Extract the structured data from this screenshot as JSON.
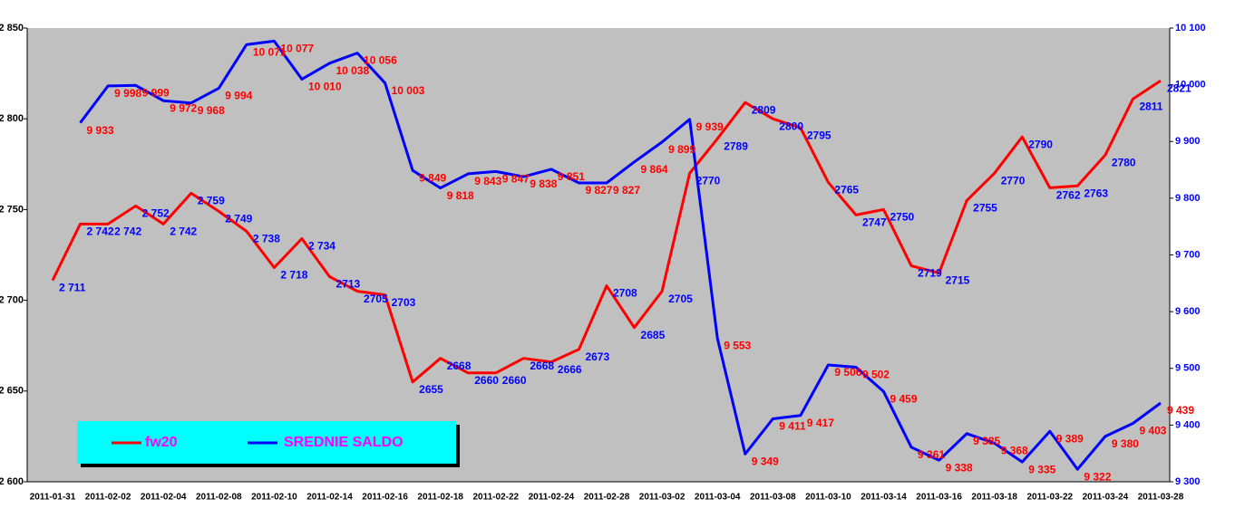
{
  "chart_data": {
    "type": "line",
    "categories": [
      "2011-01-31",
      null,
      "2011-02-02",
      null,
      "2011-02-04",
      null,
      "2011-02-08",
      null,
      "2011-02-10",
      null,
      "2011-02-14",
      null,
      "2011-02-16",
      null,
      "2011-02-18",
      null,
      "2011-02-22",
      null,
      "2011-02-24",
      null,
      "2011-02-28",
      null,
      "2011-03-02",
      null,
      "2011-03-04",
      null,
      "2011-03-08",
      null,
      "2011-03-10",
      null,
      "2011-03-14",
      null,
      "2011-03-16",
      null,
      "2011-03-18",
      null,
      "2011-03-22",
      null,
      "2011-03-24",
      null,
      "2011-03-28"
    ],
    "series": [
      {
        "name": "fw20",
        "color": "#ff0000",
        "label_color": "#0000ff",
        "values": [
          2711,
          2742,
          2742,
          2752,
          2742,
          2759,
          2749,
          2738,
          2718,
          2734,
          2713,
          2705,
          2703,
          2655,
          2668,
          2660,
          2660,
          2668,
          2666,
          2673,
          2708,
          2685,
          2705,
          2770,
          2789,
          2809,
          2800,
          2795,
          2765,
          2747,
          2750,
          2719,
          2715,
          2755,
          2770,
          2790,
          2762,
          2763,
          2780,
          2811,
          2821
        ],
        "value_labels": [
          "2 711",
          "2 742",
          "2 742",
          "2 752",
          "2 742",
          "2 759",
          "2 749",
          "2 738",
          "2 718",
          "2 734",
          "2713",
          "2705",
          "2703",
          "2655",
          "2668",
          "2660",
          "2660",
          "2668",
          "2666",
          "2673",
          "2708",
          "2685",
          "2705",
          "2770",
          "2789",
          "2809",
          "2800",
          "2795",
          "2765",
          "2747",
          "2750",
          "2719",
          "2715",
          "2755",
          "2770",
          "2790",
          "2762",
          "2763",
          "2780",
          "2811",
          "2821"
        ]
      },
      {
        "name": "SREDNIE SALDO",
        "color": "#0000ff",
        "label_color": "#ff0000",
        "axis": "y2",
        "values": [
          null,
          9933,
          9998,
          9999,
          9972,
          9968,
          9994,
          10071,
          10077,
          10010,
          10038,
          10056,
          10003,
          9849,
          9818,
          9843,
          9847,
          9838,
          9851,
          9827,
          9827,
          9864,
          9899,
          9939,
          9553,
          9349,
          9411,
          9417,
          9506,
          9502,
          9459,
          9361,
          9338,
          9385,
          9368,
          9335,
          9389,
          9322,
          9380,
          9403,
          9439
        ],
        "value_labels": [
          null,
          "9 933",
          "9 998",
          "9 999",
          "9 972",
          "9 968",
          "9 994",
          "10 071",
          "10 077",
          "10 010",
          "10 038",
          "10 056",
          "10 003",
          "9 849",
          "9 818",
          "9 843",
          "9 847",
          "9 838",
          "9 851",
          "9 827",
          "9 827",
          "9 864",
          "9 899",
          "9 939",
          "9 553",
          "9 349",
          "9 411",
          "9 417",
          "9 506",
          "9 502",
          "9 459",
          "9 361",
          "9 338",
          "9 385",
          "9 368",
          "9 335",
          "9 389",
          "9 322",
          "9 380",
          "9 403",
          "9 439"
        ]
      }
    ],
    "ylim": [
      2600,
      2850
    ],
    "yticks": [
      {
        "value": 2600,
        "label": "2 600"
      },
      {
        "value": 2650,
        "label": "2 650"
      },
      {
        "value": 2700,
        "label": "2 700"
      },
      {
        "value": 2750,
        "label": "2 750"
      },
      {
        "value": 2800,
        "label": "2 800"
      },
      {
        "value": 2850,
        "label": "2 850"
      }
    ],
    "y2lim": [
      9300,
      10100
    ],
    "y2ticks": [
      {
        "value": 9300,
        "label": "9 300"
      },
      {
        "value": 9400,
        "label": "9 400"
      },
      {
        "value": 9500,
        "label": "9 500"
      },
      {
        "value": 9600,
        "label": "9 600"
      },
      {
        "value": 9700,
        "label": "9 700"
      },
      {
        "value": 9800,
        "label": "9 800"
      },
      {
        "value": 9900,
        "label": "9 900"
      },
      {
        "value": 10000,
        "label": "10 000"
      },
      {
        "value": 10100,
        "label": "10 100"
      }
    ],
    "legend": "bottom-left",
    "legend_color": "#ff00ff",
    "background": "#c0c0c0"
  }
}
